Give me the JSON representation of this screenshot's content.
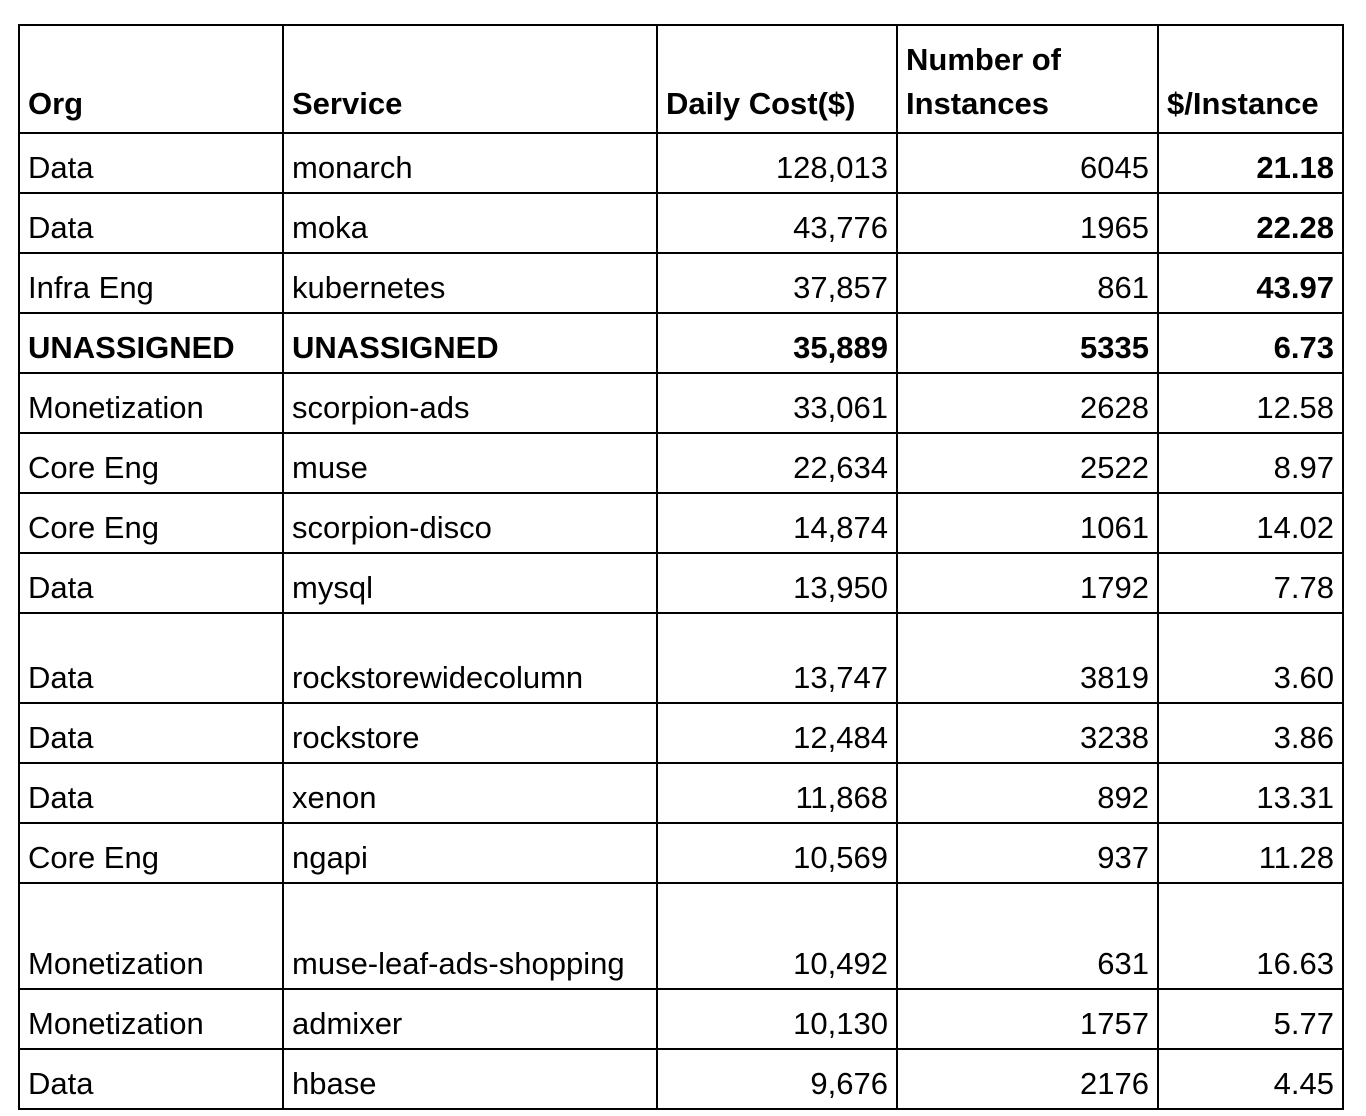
{
  "table": {
    "headers": {
      "org": "Org",
      "service": "Service",
      "daily_cost": "Daily Cost($)",
      "instances": "Number of Instances",
      "per_instance": "$/Instance"
    },
    "rows": [
      {
        "org": "Data",
        "service": "monarch",
        "daily_cost": "128,013",
        "instances": "6045",
        "per_instance": "21.18"
      },
      {
        "org": "Data",
        "service": "moka",
        "daily_cost": "43,776",
        "instances": "1965",
        "per_instance": "22.28"
      },
      {
        "org": "Infra Eng",
        "service": "kubernetes",
        "daily_cost": "37,857",
        "instances": "861",
        "per_instance": "43.97"
      },
      {
        "org": "UNASSIGNED",
        "service": "UNASSIGNED",
        "daily_cost": "35,889",
        "instances": "5335",
        "per_instance": "6.73"
      },
      {
        "org": "Monetization",
        "service": "scorpion-ads",
        "daily_cost": "33,061",
        "instances": "2628",
        "per_instance": "12.58"
      },
      {
        "org": "Core Eng",
        "service": "muse",
        "daily_cost": "22,634",
        "instances": "2522",
        "per_instance": "8.97"
      },
      {
        "org": "Core Eng",
        "service": "scorpion-disco",
        "daily_cost": "14,874",
        "instances": "1061",
        "per_instance": "14.02"
      },
      {
        "org": "Data",
        "service": "mysql",
        "daily_cost": "13,950",
        "instances": "1792",
        "per_instance": "7.78"
      },
      {
        "org": "Data",
        "service": "rockstorewidecolumn",
        "daily_cost": "13,747",
        "instances": "3819",
        "per_instance": "3.60"
      },
      {
        "org": "Data",
        "service": "rockstore",
        "daily_cost": "12,484",
        "instances": "3238",
        "per_instance": "3.86"
      },
      {
        "org": "Data",
        "service": "xenon",
        "daily_cost": "11,868",
        "instances": "892",
        "per_instance": "13.31"
      },
      {
        "org": "Core Eng",
        "service": "ngapi",
        "daily_cost": "10,569",
        "instances": "937",
        "per_instance": "11.28"
      },
      {
        "org": "Monetization",
        "service": "muse-leaf-ads-shopping",
        "daily_cost": "10,492",
        "instances": "631",
        "per_instance": "16.63"
      },
      {
        "org": "Monetization",
        "service": "admixer",
        "daily_cost": "10,130",
        "instances": "1757",
        "per_instance": "5.77"
      },
      {
        "org": "Data",
        "service": "hbase",
        "daily_cost": "9,676",
        "instances": "2176",
        "per_instance": "4.45"
      }
    ]
  }
}
